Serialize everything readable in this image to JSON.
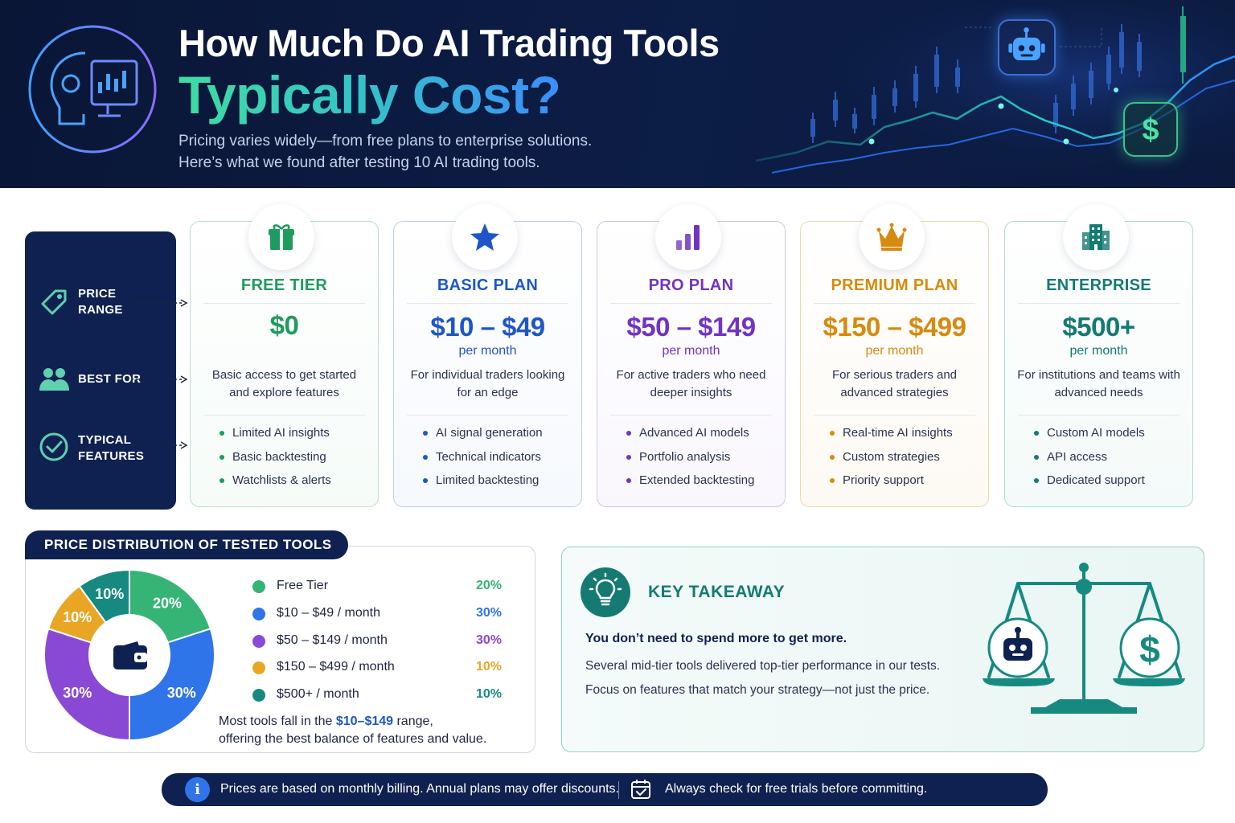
{
  "header": {
    "title_line1": "How Much Do AI Trading Tools",
    "title_line2": "Typically Cost?",
    "subtitle_line1": "Pricing varies widely—from free plans to enterprise solutions.",
    "subtitle_line2": "Here’s what we found after testing 10 AI trading tools.",
    "logo_icon": "ai-head-chart-icon",
    "robot_icon": "robot-icon",
    "dollar_icon": "dollar-icon"
  },
  "legend": {
    "price_range": "PRICE RANGE",
    "best_for": "BEST FOR",
    "typical_features": "TYPICAL FEATURES",
    "icons": [
      "price-tag-icon",
      "users-icon",
      "check-circle-icon"
    ]
  },
  "plans": [
    {
      "name": "FREE TIER",
      "price": "$0",
      "per": "",
      "desc": "Basic access to get started and explore features",
      "features": [
        "Limited AI insights",
        "Basic backtesting",
        "Watchlists & alerts"
      ],
      "color": "#1f9b5e",
      "border": "#b7e3cb",
      "icon": "gift-icon"
    },
    {
      "name": "BASIC PLAN",
      "price": "$10 – $49",
      "per": "per month",
      "desc": "For individual traders looking for an edge",
      "features": [
        "AI signal generation",
        "Technical indicators",
        "Limited backtesting"
      ],
      "color": "#1e56c8",
      "border": "#bcd0f1",
      "icon": "star-icon"
    },
    {
      "name": "PRO PLAN",
      "price": "$50 – $149",
      "per": "per month",
      "desc": "For active traders who need deeper insights",
      "features": [
        "Advanced AI models",
        "Portfolio analysis",
        "Extended backtesting"
      ],
      "color": "#7233c2",
      "border": "#d3c2ee",
      "icon": "bar-chart-icon"
    },
    {
      "name": "PREMIUM PLAN",
      "price": "$150 – $499",
      "per": "per month",
      "desc": "For serious traders and advanced strategies",
      "features": [
        "Real-time AI insights",
        "Custom strategies",
        "Priority support"
      ],
      "color": "#d78a0f",
      "border": "#f1d8a8",
      "icon": "crown-icon"
    },
    {
      "name": "ENTERPRISE",
      "price": "$500+",
      "per": "per month",
      "desc": "For institutions and teams with advanced needs",
      "features": [
        "Custom AI models",
        "API access",
        "Dedicated support"
      ],
      "color": "#147a72",
      "border": "#acdcd3",
      "icon": "building-icon"
    }
  ],
  "distribution": {
    "title": "PRICE DISTRIBUTION OF TESTED TOOLS",
    "center_icon": "wallet-icon",
    "note_before": "Most tools fall in the ",
    "note_highlight": "$10–$149",
    "note_after": " range,",
    "note_line2": "offering the best balance of features and value."
  },
  "chart_data": {
    "type": "pie",
    "categories": [
      "Free Tier",
      "$10 – $49 / month",
      "$50 – $149 / month",
      "$150 – $499 / month",
      "$500+ / month"
    ],
    "values": [
      20,
      30,
      30,
      10,
      10
    ],
    "labels": [
      "20%",
      "30%",
      "30%",
      "10%",
      "10%"
    ],
    "colors": [
      "#35b475",
      "#2f74e8",
      "#8a49d4",
      "#e8a624",
      "#168a80"
    ],
    "title": "PRICE DISTRIBUTION OF TESTED TOOLS",
    "legend": "right"
  },
  "takeaway": {
    "title": "KEY TAKEAWAY",
    "headline": "You don’t need to spend more to get more.",
    "line1": "Several mid-tier tools delivered top-tier performance in our tests.",
    "line2": "Focus on features that match your strategy—not just the price.",
    "icon": "lightbulb-icon",
    "illustration": "balance-scale-icon"
  },
  "footer": {
    "text1": "Prices are based on monthly billing. Annual plans may offer discounts.",
    "text2": "Always check for free trials before committing.",
    "info_symbol": "i",
    "icons": [
      "info-icon",
      "calendar-check-icon"
    ]
  }
}
